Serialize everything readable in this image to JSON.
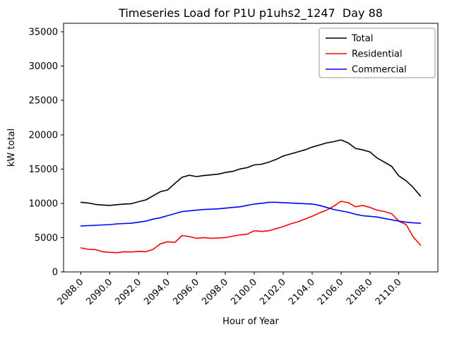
{
  "chart_data": {
    "type": "line",
    "title": "Timeseries Load for P1U p1uhs2_1247  Day 88",
    "xlabel": "Hour of Year",
    "ylabel": "kW total",
    "xlim": [
      2086.8,
      2112.7
    ],
    "ylim": [
      0,
      36250
    ],
    "grid": false,
    "legend_position": "upper right",
    "legend_border_color": "#999999",
    "xticks": [
      2088,
      2090,
      2092,
      2094,
      2096,
      2098,
      2100,
      2102,
      2104,
      2106,
      2108,
      2110
    ],
    "xtick_labels": [
      "2088.0",
      "2090.0",
      "2092.0",
      "2094.0",
      "2096.0",
      "2098.0",
      "2100.0",
      "2102.0",
      "2104.0",
      "2106.0",
      "2108.0",
      "2110.0"
    ],
    "yticks": [
      0,
      5000,
      10000,
      15000,
      20000,
      25000,
      30000,
      35000
    ],
    "ytick_labels": [
      "0",
      "5000",
      "10000",
      "15000",
      "20000",
      "25000",
      "30000",
      "35000"
    ],
    "x": [
      2088.0,
      2088.5,
      2089.0,
      2089.5,
      2090.0,
      2090.5,
      2091.0,
      2091.5,
      2092.0,
      2092.5,
      2093.0,
      2093.5,
      2094.0,
      2094.5,
      2095.0,
      2095.5,
      2096.0,
      2096.5,
      2097.0,
      2097.5,
      2098.0,
      2098.5,
      2099.0,
      2099.5,
      2100.0,
      2100.5,
      2101.0,
      2101.5,
      2102.0,
      2102.5,
      2103.0,
      2103.5,
      2104.0,
      2104.5,
      2105.0,
      2105.5,
      2106.0,
      2106.5,
      2107.0,
      2107.5,
      2108.0,
      2108.5,
      2109.0,
      2109.5,
      2110.0,
      2110.5,
      2111.0,
      2111.5
    ],
    "series": [
      {
        "name": "Total",
        "color": "#000000",
        "values": [
          10150,
          10050,
          9850,
          9750,
          9700,
          9800,
          9900,
          9950,
          10250,
          10500,
          11100,
          11700,
          11950,
          12900,
          13800,
          14100,
          13900,
          14050,
          14150,
          14250,
          14500,
          14650,
          15000,
          15200,
          15600,
          15700,
          16000,
          16400,
          16900,
          17200,
          17500,
          17800,
          18200,
          18500,
          18800,
          19000,
          19250,
          18800,
          18000,
          17800,
          17500,
          16600,
          16000,
          15400,
          14000,
          13300,
          12300,
          11050
        ]
      },
      {
        "name": "Residential",
        "color": "#ff0000",
        "values": [
          3500,
          3300,
          3250,
          2950,
          2850,
          2800,
          2950,
          2900,
          3000,
          2950,
          3300,
          4100,
          4400,
          4300,
          5300,
          5150,
          4900,
          5000,
          4900,
          4950,
          5000,
          5200,
          5400,
          5500,
          6000,
          5900,
          6000,
          6300,
          6600,
          7000,
          7300,
          7700,
          8100,
          8600,
          9000,
          9600,
          10300,
          10100,
          9500,
          9700,
          9400,
          9000,
          8800,
          8500,
          7400,
          6900,
          5100,
          3900
        ]
      },
      {
        "name": "Commercial",
        "color": "#0000ff",
        "values": [
          6700,
          6750,
          6800,
          6850,
          6900,
          7000,
          7050,
          7100,
          7250,
          7400,
          7700,
          7900,
          8200,
          8500,
          8800,
          8900,
          9000,
          9100,
          9150,
          9200,
          9300,
          9400,
          9500,
          9700,
          9900,
          10000,
          10150,
          10150,
          10100,
          10050,
          10000,
          9950,
          9900,
          9700,
          9400,
          9100,
          8900,
          8700,
          8400,
          8200,
          8100,
          8000,
          7800,
          7600,
          7400,
          7250,
          7150,
          7100
        ]
      }
    ]
  }
}
